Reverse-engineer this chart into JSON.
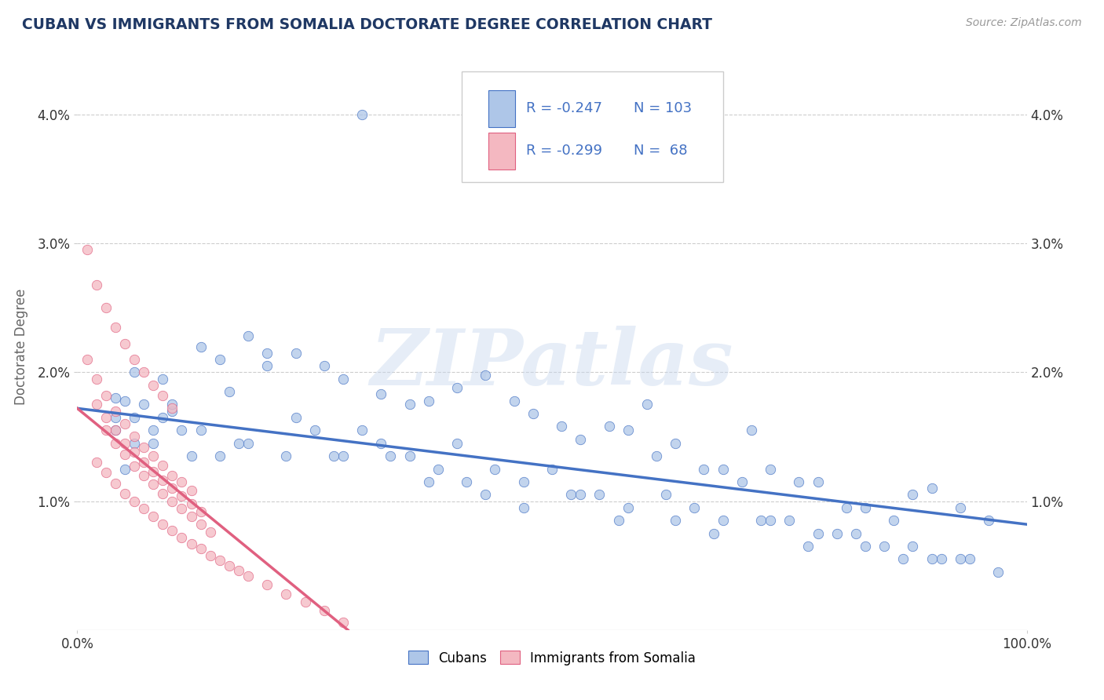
{
  "title": "CUBAN VS IMMIGRANTS FROM SOMALIA DOCTORATE DEGREE CORRELATION CHART",
  "source_text": "Source: ZipAtlas.com",
  "ylabel": "Doctorate Degree",
  "xlim": [
    0.0,
    1.0
  ],
  "ylim": [
    0.0,
    0.044
  ],
  "xtick_positions": [
    0.0,
    1.0
  ],
  "xtick_labels": [
    "0.0%",
    "100.0%"
  ],
  "ytick_values": [
    0.01,
    0.02,
    0.03,
    0.04
  ],
  "ytick_labels": [
    "1.0%",
    "2.0%",
    "3.0%",
    "4.0%"
  ],
  "legend_entries": [
    {
      "label": "Cubans",
      "color": "#aec6e8",
      "R": "-0.247",
      "N": "103"
    },
    {
      "label": "Immigrants from Somalia",
      "color": "#f4b8c1",
      "R": "-0.299",
      "N": " 68"
    }
  ],
  "blue_scatter_x": [
    0.3,
    0.04,
    0.06,
    0.08,
    0.1,
    0.12,
    0.06,
    0.08,
    0.04,
    0.05,
    0.13,
    0.15,
    0.18,
    0.2,
    0.16,
    0.23,
    0.26,
    0.28,
    0.32,
    0.35,
    0.37,
    0.4,
    0.43,
    0.46,
    0.48,
    0.51,
    0.53,
    0.56,
    0.58,
    0.61,
    0.63,
    0.66,
    0.68,
    0.71,
    0.73,
    0.76,
    0.78,
    0.81,
    0.83,
    0.86,
    0.88,
    0.9,
    0.93,
    0.96,
    0.04,
    0.07,
    0.09,
    0.11,
    0.15,
    0.18,
    0.22,
    0.25,
    0.28,
    0.32,
    0.35,
    0.38,
    0.41,
    0.44,
    0.47,
    0.52,
    0.55,
    0.58,
    0.62,
    0.65,
    0.68,
    0.72,
    0.75,
    0.78,
    0.82,
    0.85,
    0.88,
    0.91,
    0.94,
    0.97,
    0.06,
    0.1,
    0.2,
    0.3,
    0.4,
    0.5,
    0.6,
    0.7,
    0.8,
    0.9,
    0.05,
    0.13,
    0.23,
    0.33,
    0.43,
    0.53,
    0.63,
    0.73,
    0.83,
    0.93,
    0.09,
    0.17,
    0.27,
    0.37,
    0.47,
    0.57,
    0.67,
    0.77,
    0.87
  ],
  "blue_scatter_y": [
    0.04,
    0.018,
    0.0165,
    0.0155,
    0.017,
    0.0135,
    0.02,
    0.0145,
    0.0165,
    0.0178,
    0.022,
    0.021,
    0.0228,
    0.0215,
    0.0185,
    0.0215,
    0.0205,
    0.0195,
    0.0183,
    0.0175,
    0.0178,
    0.0188,
    0.0198,
    0.0178,
    0.0168,
    0.0158,
    0.0148,
    0.0158,
    0.0155,
    0.0135,
    0.0145,
    0.0125,
    0.0125,
    0.0155,
    0.0125,
    0.0115,
    0.0115,
    0.0095,
    0.0095,
    0.0085,
    0.0105,
    0.011,
    0.0095,
    0.0085,
    0.0155,
    0.0175,
    0.0195,
    0.0155,
    0.0135,
    0.0145,
    0.0135,
    0.0155,
    0.0135,
    0.0145,
    0.0135,
    0.0125,
    0.0115,
    0.0125,
    0.0115,
    0.0105,
    0.0105,
    0.0095,
    0.0105,
    0.0095,
    0.0085,
    0.0085,
    0.0085,
    0.0075,
    0.0075,
    0.0065,
    0.0065,
    0.0055,
    0.0055,
    0.0045,
    0.0145,
    0.0175,
    0.0205,
    0.0155,
    0.0145,
    0.0125,
    0.0175,
    0.0115,
    0.0075,
    0.0055,
    0.0125,
    0.0155,
    0.0165,
    0.0135,
    0.0105,
    0.0105,
    0.0085,
    0.0085,
    0.0065,
    0.0055,
    0.0165,
    0.0145,
    0.0135,
    0.0115,
    0.0095,
    0.0085,
    0.0075,
    0.0065,
    0.0055
  ],
  "pink_scatter_x": [
    0.01,
    0.02,
    0.03,
    0.04,
    0.05,
    0.06,
    0.07,
    0.08,
    0.09,
    0.1,
    0.01,
    0.02,
    0.03,
    0.04,
    0.05,
    0.06,
    0.07,
    0.08,
    0.09,
    0.1,
    0.11,
    0.12,
    0.02,
    0.03,
    0.04,
    0.05,
    0.06,
    0.07,
    0.08,
    0.09,
    0.1,
    0.11,
    0.12,
    0.13,
    0.03,
    0.04,
    0.05,
    0.06,
    0.07,
    0.08,
    0.09,
    0.1,
    0.11,
    0.12,
    0.13,
    0.14,
    0.02,
    0.03,
    0.04,
    0.05,
    0.06,
    0.07,
    0.08,
    0.09,
    0.1,
    0.11,
    0.12,
    0.13,
    0.14,
    0.15,
    0.16,
    0.17,
    0.18,
    0.2,
    0.22,
    0.24,
    0.26,
    0.28
  ],
  "pink_scatter_y": [
    0.0295,
    0.0268,
    0.025,
    0.0235,
    0.0222,
    0.021,
    0.02,
    0.019,
    0.0182,
    0.0172,
    0.021,
    0.0195,
    0.0182,
    0.017,
    0.016,
    0.015,
    0.0142,
    0.0135,
    0.0128,
    0.012,
    0.0115,
    0.0108,
    0.0175,
    0.0165,
    0.0155,
    0.0145,
    0.0138,
    0.013,
    0.0123,
    0.0116,
    0.011,
    0.0104,
    0.0098,
    0.0092,
    0.0155,
    0.0145,
    0.0136,
    0.0127,
    0.012,
    0.0113,
    0.0106,
    0.01,
    0.0094,
    0.0088,
    0.0082,
    0.0076,
    0.013,
    0.0122,
    0.0114,
    0.0106,
    0.01,
    0.0094,
    0.0088,
    0.0082,
    0.0077,
    0.0072,
    0.0067,
    0.0063,
    0.0058,
    0.0054,
    0.005,
    0.0046,
    0.0042,
    0.0035,
    0.0028,
    0.0022,
    0.0015,
    0.0006
  ],
  "blue_line_x": [
    0.0,
    1.0
  ],
  "blue_line_y": [
    0.0172,
    0.0082
  ],
  "pink_line_x": [
    0.0,
    0.285
  ],
  "pink_line_y": [
    0.0172,
    0.0
  ],
  "scatter_blue_color": "#aec6e8",
  "scatter_pink_color": "#f4b8c1",
  "line_blue_color": "#4472c4",
  "line_pink_color": "#e06080",
  "watermark_text": "ZIPatlas",
  "background_color": "#ffffff",
  "grid_color": "#c8c8c8",
  "title_color": "#1f3864",
  "axis_label_color": "#666666"
}
